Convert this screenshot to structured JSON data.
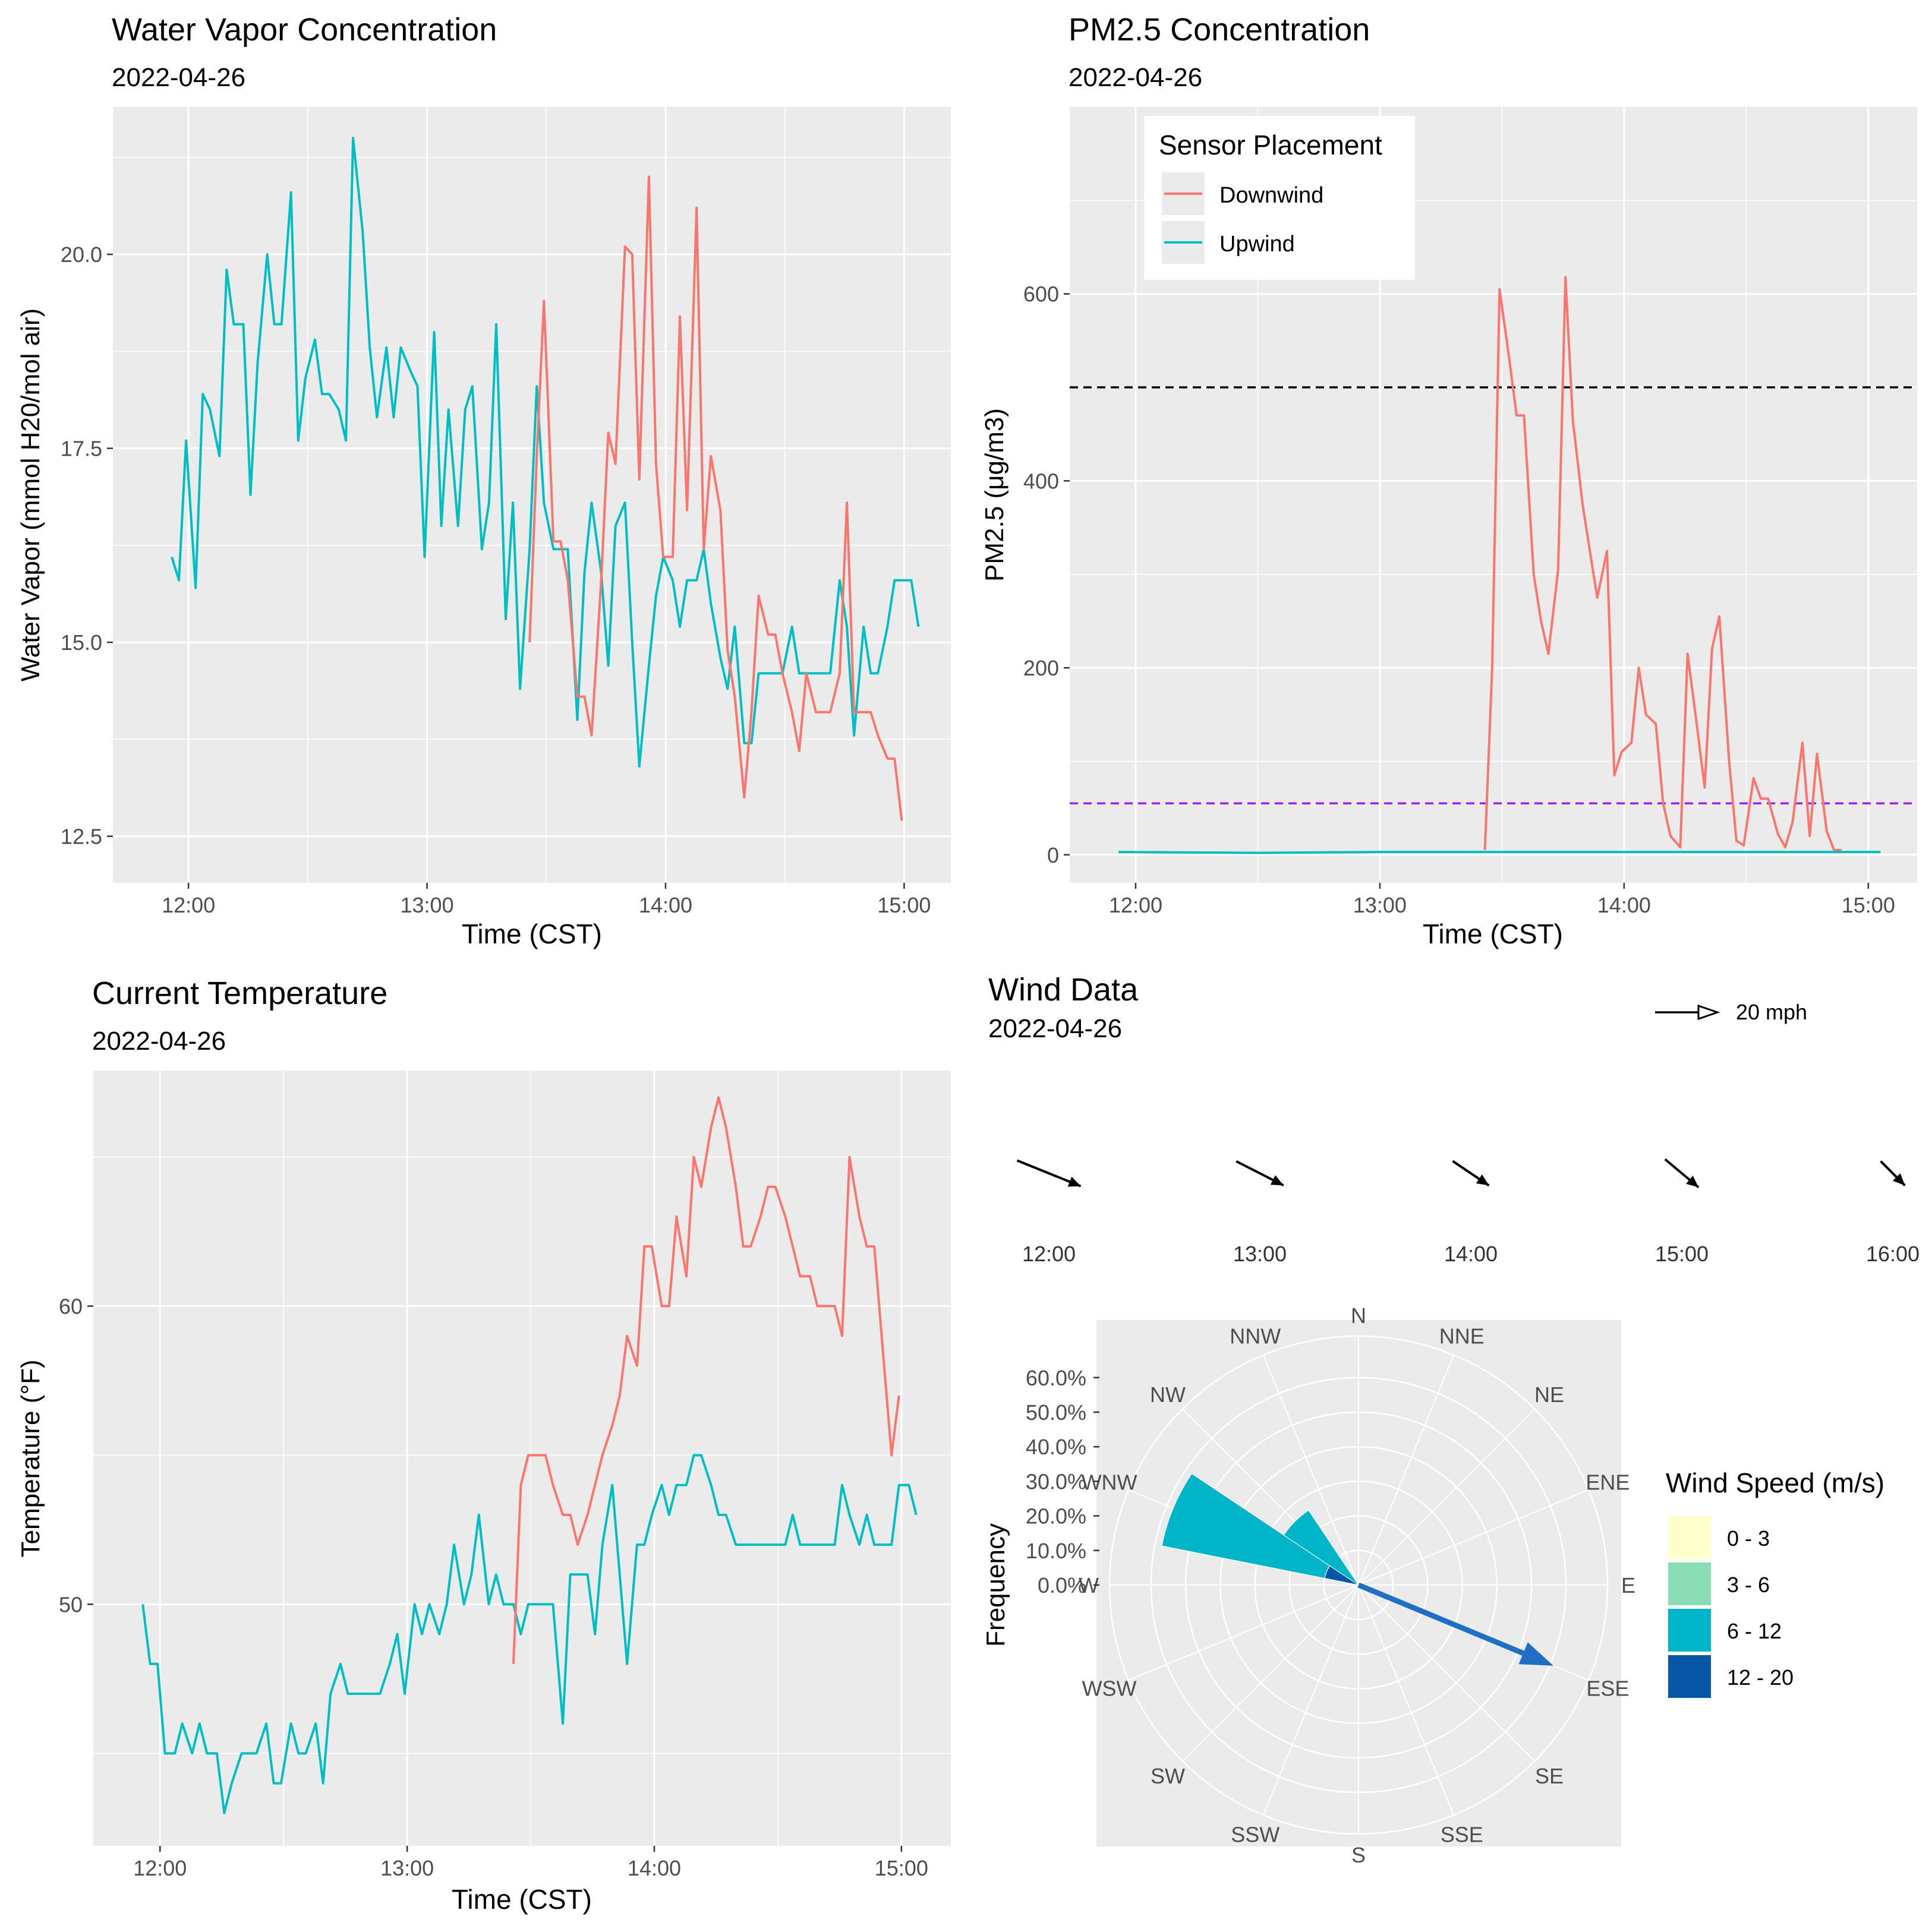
{
  "colors": {
    "downwind": "#F8766D",
    "upwind": "#00BFC4",
    "panel_bg": "#EBEBEB",
    "grid": "#FFFFFF",
    "tick_text": "#4D4D4D",
    "pm_threshold_hi": "#000000",
    "pm_threshold_lo": "#A020F0",
    "wind_arrow": "#1F6FC5",
    "rose_6_12": "#00B5C7",
    "rose_12_20": "#0656A6"
  },
  "chart_data": [
    {
      "id": "water_vapor",
      "type": "line",
      "title": "Water Vapor Concentration",
      "subtitle": "2022-04-26",
      "xlabel": "Time (CST)",
      "ylabel": "Water Vapor (mmol H20/mol air)",
      "xlim": [
        11.6833,
        15.1958
      ],
      "ylim": [
        11.9,
        21.9
      ],
      "xticks": [
        12,
        13,
        14,
        15
      ],
      "xtick_labels": [
        "12:00",
        "13:00",
        "14:00",
        "15:00"
      ],
      "yticks": [
        12.5,
        15.0,
        17.5,
        20.0
      ],
      "ytick_labels": [
        "12.5",
        "15.0",
        "17.5",
        "20.0"
      ],
      "series": [
        {
          "name": "Upwind",
          "x": [
            11.93,
            11.96,
            11.99,
            12.03,
            12.06,
            12.09,
            12.13,
            12.16,
            12.19,
            12.23,
            12.26,
            12.29,
            12.33,
            12.36,
            12.39,
            12.43,
            12.46,
            12.49,
            12.53,
            12.56,
            12.59,
            12.63,
            12.66,
            12.69,
            12.73,
            12.76,
            12.79,
            12.83,
            12.86,
            12.89,
            12.93,
            12.96,
            12.99,
            13.03,
            13.06,
            13.09,
            13.13,
            13.16,
            13.19,
            13.23,
            13.26,
            13.29,
            13.33,
            13.36,
            13.39,
            13.43,
            13.46,
            13.49,
            13.53,
            13.56,
            13.59,
            13.63,
            13.66,
            13.69,
            13.73,
            13.76,
            13.79,
            13.83,
            13.86,
            13.89,
            13.93,
            13.96,
            13.99,
            14.03,
            14.06,
            14.09,
            14.13,
            14.16,
            14.19,
            14.23,
            14.26,
            14.29,
            14.33,
            14.36,
            14.39,
            14.43,
            14.46,
            14.49,
            14.53,
            14.56,
            14.59,
            14.63,
            14.66,
            14.69,
            14.73,
            14.76,
            14.79,
            14.83,
            14.86,
            14.89,
            14.93,
            14.96,
            14.99,
            15.03,
            15.06
          ],
          "values": [
            16.1,
            15.8,
            17.6,
            15.7,
            18.2,
            18.0,
            17.4,
            19.8,
            19.1,
            19.1,
            16.9,
            18.6,
            20.0,
            19.1,
            19.1,
            20.8,
            17.6,
            18.4,
            18.9,
            18.2,
            18.2,
            18.0,
            17.6,
            21.5,
            20.3,
            18.8,
            17.9,
            18.8,
            17.9,
            18.8,
            18.5,
            18.3,
            16.1,
            19.0,
            16.5,
            18.0,
            16.5,
            18.0,
            18.3,
            16.2,
            16.8,
            19.1,
            15.3,
            16.8,
            14.4,
            16.2,
            18.3,
            16.8,
            16.2,
            16.2,
            16.2,
            14.0,
            15.9,
            16.8,
            15.9,
            14.7,
            16.5,
            16.8,
            15.0,
            13.4,
            14.7,
            15.6,
            16.1,
            15.8,
            15.2,
            15.8,
            15.8,
            16.2,
            15.5,
            14.8,
            14.4,
            15.2,
            13.7,
            13.7,
            14.6,
            14.6,
            14.6,
            14.6,
            15.2,
            14.6,
            14.6,
            14.6,
            14.6,
            14.6,
            15.8,
            15.2,
            13.8,
            15.2,
            14.6,
            14.6,
            15.2,
            15.8,
            15.8,
            15.8,
            15.2
          ]
        },
        {
          "name": "Downwind",
          "x": [
            13.43,
            13.46,
            13.49,
            13.53,
            13.56,
            13.59,
            13.63,
            13.66,
            13.69,
            13.73,
            13.76,
            13.79,
            13.83,
            13.86,
            13.89,
            13.93,
            13.96,
            13.99,
            14.03,
            14.06,
            14.09,
            14.13,
            14.16,
            14.19,
            14.23,
            14.26,
            14.29,
            14.33,
            14.36,
            14.39,
            14.43,
            14.46,
            14.49,
            14.53,
            14.56,
            14.59,
            14.63,
            14.66,
            14.69,
            14.73,
            14.76,
            14.79,
            14.83,
            14.86,
            14.89,
            14.93,
            14.96,
            14.99
          ],
          "values": [
            15.0,
            17.4,
            19.4,
            16.3,
            16.3,
            15.8,
            14.3,
            14.3,
            13.8,
            15.8,
            17.7,
            17.3,
            20.1,
            20.0,
            17.1,
            21.0,
            17.3,
            16.1,
            16.1,
            19.2,
            16.7,
            20.6,
            16.2,
            17.4,
            16.7,
            14.9,
            14.3,
            13.0,
            14.1,
            15.6,
            15.1,
            15.1,
            14.6,
            14.1,
            13.6,
            14.6,
            14.1,
            14.1,
            14.1,
            14.6,
            16.8,
            14.1,
            14.1,
            14.1,
            13.8,
            13.5,
            13.5,
            12.7
          ]
        }
      ]
    },
    {
      "id": "pm25",
      "type": "line",
      "title": "PM2.5 Concentration",
      "subtitle": "2022-04-26",
      "xlabel": "Time (CST)",
      "ylabel": "PM2.5 (μg/m3)",
      "xlim": [
        11.73,
        15.2
      ],
      "ylim": [
        -30,
        800
      ],
      "xticks": [
        12,
        13,
        14,
        15
      ],
      "xtick_labels": [
        "12:00",
        "13:00",
        "14:00",
        "15:00"
      ],
      "yticks": [
        0,
        200,
        400,
        600
      ],
      "ytick_labels": [
        "0",
        "200",
        "400",
        "600"
      ],
      "hlines": [
        {
          "y": 500,
          "color_key": "pm_threshold_hi"
        },
        {
          "y": 55,
          "color_key": "pm_threshold_lo"
        }
      ],
      "legend": {
        "title": "Sensor Placement",
        "position": "top-left",
        "entries": [
          "Downwind",
          "Upwind"
        ]
      },
      "series": [
        {
          "name": "Downwind",
          "x": [
            13.43,
            13.46,
            13.49,
            13.53,
            13.56,
            13.59,
            13.63,
            13.66,
            13.69,
            13.73,
            13.76,
            13.79,
            13.83,
            13.86,
            13.89,
            13.93,
            13.96,
            13.99,
            14.03,
            14.06,
            14.09,
            14.13,
            14.16,
            14.19,
            14.23,
            14.26,
            14.29,
            14.33,
            14.36,
            14.39,
            14.43,
            14.46,
            14.49,
            14.53,
            14.56,
            14.59,
            14.63,
            14.66,
            14.69,
            14.73,
            14.76,
            14.79,
            14.83,
            14.86,
            14.89
          ],
          "values": [
            5,
            200,
            605,
            530,
            470,
            470,
            300,
            250,
            215,
            305,
            618,
            465,
            375,
            325,
            275,
            325,
            85,
            110,
            120,
            200,
            150,
            140,
            55,
            20,
            8,
            215,
            155,
            72,
            220,
            255,
            100,
            15,
            10,
            82,
            60,
            60,
            22,
            8,
            35,
            120,
            20,
            108,
            25,
            5,
            5
          ]
        },
        {
          "name": "Upwind",
          "x": [
            11.93,
            12.5,
            13.0,
            13.5,
            14.0,
            14.5,
            15.05
          ],
          "values": [
            3,
            2,
            3,
            3,
            3,
            3,
            3
          ]
        }
      ]
    },
    {
      "id": "temperature",
      "type": "line",
      "title": "Current Temperature",
      "subtitle": "2022-04-26",
      "xlabel": "Time (CST)",
      "ylabel": "Temperature (°F)",
      "xlim": [
        11.73,
        15.2
      ],
      "ylim": [
        41.9,
        67.9
      ],
      "xticks": [
        12,
        13,
        14,
        15
      ],
      "xtick_labels": [
        "12:00",
        "13:00",
        "14:00",
        "15:00"
      ],
      "yticks": [
        50,
        60
      ],
      "ytick_labels": [
        "50",
        "60"
      ],
      "series": [
        {
          "name": "Upwind",
          "x": [
            11.93,
            11.96,
            11.99,
            12.02,
            12.06,
            12.09,
            12.13,
            12.16,
            12.19,
            12.23,
            12.26,
            12.29,
            12.33,
            12.36,
            12.39,
            12.43,
            12.46,
            12.49,
            12.53,
            12.56,
            12.59,
            12.63,
            12.66,
            12.69,
            12.73,
            12.76,
            12.79,
            12.83,
            12.86,
            12.89,
            12.93,
            12.96,
            12.99,
            13.03,
            13.06,
            13.09,
            13.13,
            13.16,
            13.19,
            13.23,
            13.26,
            13.29,
            13.33,
            13.36,
            13.39,
            13.43,
            13.46,
            13.49,
            13.53,
            13.56,
            13.59,
            13.63,
            13.66,
            13.69,
            13.73,
            13.76,
            13.79,
            13.83,
            13.86,
            13.89,
            13.93,
            13.96,
            13.99,
            14.03,
            14.06,
            14.09,
            14.13,
            14.16,
            14.19,
            14.23,
            14.26,
            14.29,
            14.33,
            14.36,
            14.39,
            14.43,
            14.46,
            14.49,
            14.53,
            14.56,
            14.59,
            14.63,
            14.66,
            14.69,
            14.73,
            14.76,
            14.79,
            14.83,
            14.86,
            14.89,
            14.93,
            14.96,
            14.99,
            15.03,
            15.06
          ],
          "values": [
            50,
            48,
            48,
            45,
            45,
            46,
            45,
            46,
            45,
            45,
            43,
            44,
            45,
            45,
            45,
            46,
            44,
            44,
            46,
            45,
            45,
            46,
            44,
            47,
            48,
            47,
            47,
            47,
            47,
            47,
            48,
            49,
            47,
            50,
            49,
            50,
            49,
            50,
            52,
            50,
            51,
            53,
            50,
            51,
            50,
            50,
            49,
            50,
            50,
            50,
            50,
            46,
            51,
            51,
            51,
            49,
            52,
            54,
            51,
            48,
            52,
            52,
            53,
            54,
            53,
            54,
            54,
            55,
            55,
            54,
            53,
            53,
            52,
            52,
            52,
            52,
            52,
            52,
            52,
            53,
            52,
            52,
            52,
            52,
            52,
            54,
            53,
            52,
            53,
            52,
            52,
            52,
            54,
            54,
            53
          ]
        },
        {
          "name": "Downwind",
          "x": [
            13.43,
            13.46,
            13.49,
            13.53,
            13.56,
            13.59,
            13.63,
            13.66,
            13.69,
            13.73,
            13.76,
            13.79,
            13.83,
            13.86,
            13.89,
            13.93,
            13.96,
            13.99,
            14.03,
            14.06,
            14.09,
            14.13,
            14.16,
            14.19,
            14.23,
            14.26,
            14.29,
            14.33,
            14.36,
            14.39,
            14.43,
            14.46,
            14.49,
            14.53,
            14.56,
            14.59,
            14.63,
            14.66,
            14.69,
            14.73,
            14.76,
            14.79,
            14.83,
            14.86,
            14.89,
            14.93,
            14.96,
            14.99
          ],
          "values": [
            48,
            54,
            55,
            55,
            55,
            54,
            53,
            53,
            52,
            53,
            54,
            55,
            56,
            57,
            59,
            58,
            62,
            62,
            60,
            60,
            63,
            61,
            65,
            64,
            66,
            67,
            66,
            64,
            62,
            62,
            63,
            64,
            64,
            63,
            62,
            61,
            61,
            60,
            60,
            60,
            59,
            65,
            63,
            62,
            62,
            58,
            55,
            57
          ]
        }
      ]
    },
    {
      "id": "wind_timeline",
      "type": "vector",
      "title": "Wind Data",
      "subtitle": "2022-04-26",
      "scale_label": "20 mph",
      "scale_mph": 20,
      "time_labels": [
        "12:00",
        "13:00",
        "14:00",
        "15:00",
        "16:00"
      ],
      "arrows": [
        {
          "time": "12:00",
          "speed_mph": 22,
          "toward_deg": 112
        },
        {
          "time": "13:00",
          "speed_mph": 17,
          "toward_deg": 117
        },
        {
          "time": "14:00",
          "speed_mph": 14,
          "toward_deg": 124
        },
        {
          "time": "15:00",
          "speed_mph": 14,
          "toward_deg": 130
        },
        {
          "time": "16:00",
          "speed_mph": 11,
          "toward_deg": 135
        }
      ]
    },
    {
      "id": "wind_rose",
      "type": "windrose",
      "ylabel": "Frequency",
      "directions": [
        "N",
        "NNE",
        "NE",
        "ENE",
        "E",
        "ESE",
        "SE",
        "SSE",
        "S",
        "SSW",
        "SW",
        "WSW",
        "W",
        "WNW",
        "NW",
        "NNW"
      ],
      "rticks": [
        0,
        10,
        20,
        30,
        40,
        50,
        60
      ],
      "rtick_labels": [
        "0.0%",
        "10.0%",
        "20.0%",
        "30.0%",
        "40.0%",
        "50.0%",
        "60.0%"
      ],
      "rmax": 72,
      "legend": {
        "title": "Wind Speed (m/s)",
        "bins": [
          "0 - 3",
          "3 - 6",
          "6 - 12",
          "12 - 20"
        ],
        "colors": [
          "#FFFFCC",
          "#88DDB4",
          "#00B5C7",
          "#0656A6"
        ]
      },
      "sectors": [
        {
          "direction": "WNW",
          "bins": {
            "6 - 12": 48,
            "12 - 20": 10
          }
        },
        {
          "direction": "NW",
          "bins": {
            "6 - 12": 26,
            "12 - 20": 0
          }
        }
      ],
      "mean_vector": {
        "toward": "ESE",
        "magnitude_pct": 61
      }
    }
  ]
}
